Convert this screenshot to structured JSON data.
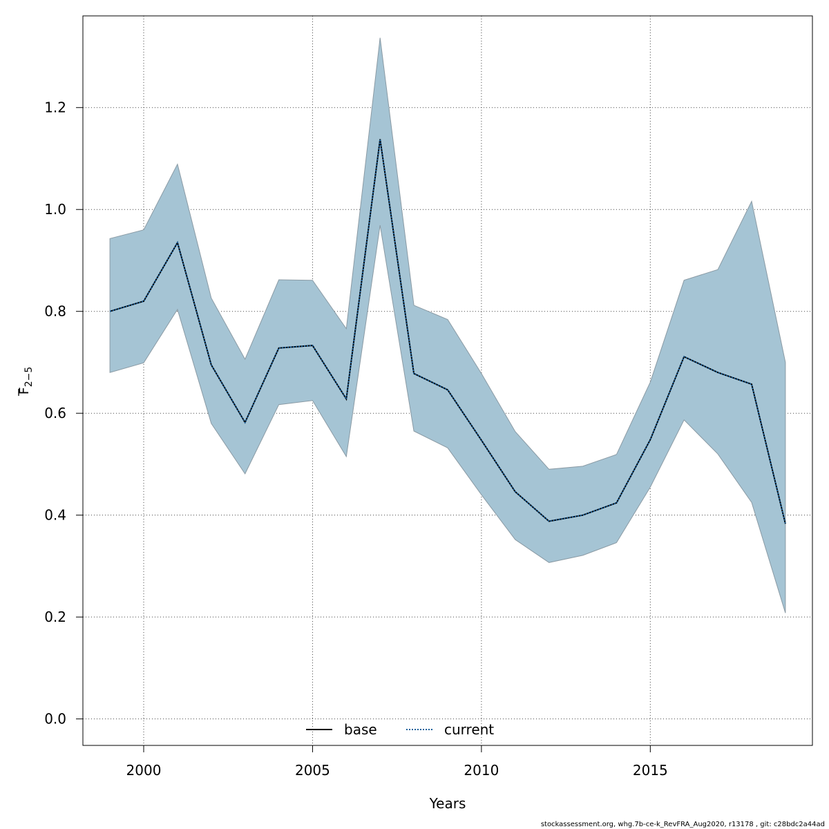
{
  "chart_data": {
    "type": "line",
    "title": "",
    "xlabel": "Years",
    "ylabel_main": "F",
    "ylabel_sub": "2−5",
    "xlim": [
      1998.2,
      2019.8
    ],
    "ylim": [
      -0.052,
      1.38
    ],
    "x_ticks": [
      2000,
      2005,
      2010,
      2015
    ],
    "y_ticks": [
      0.0,
      0.2,
      0.4,
      0.6,
      0.8,
      1.0,
      1.2
    ],
    "y_tick_labels": [
      "0.0",
      "0.2",
      "0.4",
      "0.6",
      "0.8",
      "1.0",
      "1.2"
    ],
    "grid": true,
    "legend_position": "bottom-center",
    "x": [
      1999,
      2000,
      2001,
      2002,
      2003,
      2004,
      2005,
      2006,
      2007,
      2008,
      2009,
      2010,
      2011,
      2012,
      2013,
      2014,
      2015,
      2016,
      2017,
      2018,
      2019
    ],
    "band": {
      "upper": [
        0.943,
        0.96,
        1.089,
        0.826,
        0.706,
        0.862,
        0.861,
        0.766,
        1.337,
        0.812,
        0.784,
        0.678,
        0.564,
        0.49,
        0.496,
        0.519,
        0.661,
        0.861,
        0.882,
        1.016,
        0.7
      ],
      "lower": [
        0.68,
        0.699,
        0.804,
        0.58,
        0.481,
        0.617,
        0.625,
        0.515,
        0.969,
        0.565,
        0.532,
        0.44,
        0.352,
        0.307,
        0.321,
        0.346,
        0.455,
        0.587,
        0.52,
        0.425,
        0.208
      ],
      "fill_color": "#a5c4d4",
      "stroke_color": "#8a9aa4"
    },
    "series": [
      {
        "name": "base",
        "style": "solid",
        "color": "#000000",
        "values": [
          0.8,
          0.82,
          0.935,
          0.695,
          0.582,
          0.728,
          0.733,
          0.628,
          1.138,
          0.678,
          0.646,
          0.547,
          0.446,
          0.388,
          0.4,
          0.424,
          0.548,
          0.711,
          0.68,
          0.657,
          0.383
        ]
      },
      {
        "name": "current",
        "style": "dotted",
        "color": "#1a5f9a",
        "values": [
          0.8,
          0.82,
          0.935,
          0.695,
          0.582,
          0.728,
          0.733,
          0.628,
          1.138,
          0.678,
          0.646,
          0.547,
          0.446,
          0.388,
          0.4,
          0.424,
          0.548,
          0.711,
          0.68,
          0.657,
          0.383
        ]
      }
    ]
  },
  "footer": "stockassessment.org, whg.7b-ce-k_RevFRA_Aug2020, r13178 , git: c28bdc2a44ad"
}
